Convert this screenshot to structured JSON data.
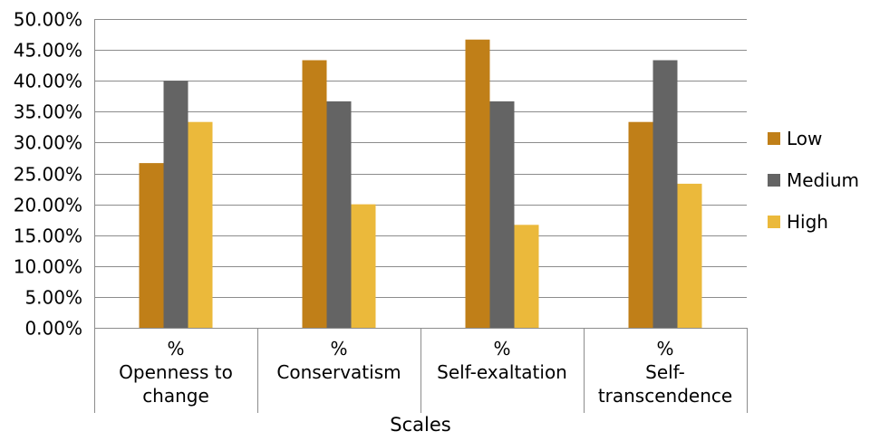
{
  "chart_data": {
    "type": "bar",
    "title": "",
    "xlabel": "Scales",
    "ylabel": "",
    "ylim": [
      0,
      0.5
    ],
    "yticks": [
      0,
      0.05,
      0.1,
      0.15,
      0.2,
      0.25,
      0.3,
      0.35,
      0.4,
      0.45,
      0.5
    ],
    "ytick_labels": [
      "0.00%",
      "5.00%",
      "10.00%",
      "15.00%",
      "20.00%",
      "25.00%",
      "30.00%",
      "35.00%",
      "40.00%",
      "45.00%",
      "50.00%"
    ],
    "grid": true,
    "legend_position": "right",
    "categories": [
      [
        "%",
        "Openness to",
        "change"
      ],
      [
        "%",
        "Conservatism"
      ],
      [
        "%",
        "Self-exaltation"
      ],
      [
        "%",
        "Self-",
        "transcendence"
      ]
    ],
    "series": [
      {
        "name": "Low",
        "color": "#C07F18",
        "values": [
          0.2667,
          0.4333,
          0.4667,
          0.3333
        ]
      },
      {
        "name": "Medium",
        "color": "#646464",
        "values": [
          0.4,
          0.3667,
          0.3667,
          0.4333
        ]
      },
      {
        "name": "High",
        "color": "#EBB93B",
        "values": [
          0.3333,
          0.2,
          0.1667,
          0.2333
        ]
      }
    ]
  }
}
